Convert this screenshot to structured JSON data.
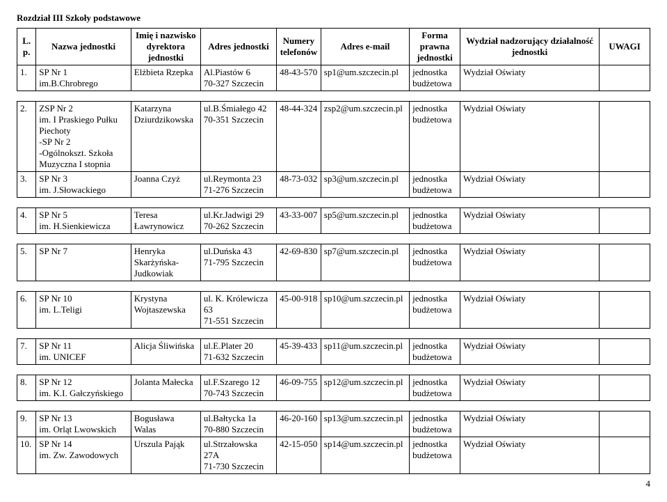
{
  "section_title": "Rozdział III Szkoły podstawowe",
  "headers": {
    "lp": "L.p.",
    "name": "Nazwa jednostki",
    "director": "Imię i nazwisko dyrektora jednostki",
    "address": "Adres jednostki",
    "phones": "Numery telefonów",
    "email": "Adres e-mail",
    "legal": "Forma prawna jednostki",
    "dept": "Wydział nadzorujący działalność jednostki",
    "notes": "UWAGI"
  },
  "rows": [
    {
      "lp": "1.",
      "name": "SP Nr 1\nim.B.Chrobrego",
      "director": "Elżbieta Rzepka",
      "address": "Al.Piastów 6\n70-327 Szczecin",
      "phones": "48-43-570",
      "email": "sp1@um.szczecin.pl",
      "legal": "jednostka budżetowa",
      "dept": "Wydział Oświaty",
      "notes": ""
    },
    {
      "gap": true
    },
    {
      "lp": "2.",
      "name": "ZSP Nr 2\nim. I Praskiego Pułku Piechoty\n-SP Nr 2\n-Ogólnokszt. Szkoła Muzyczna I stopnia",
      "director": "Katarzyna Dziurdzikowska",
      "address": "ul.B.Śmiałego 42\n70-351 Szczecin",
      "phones": "48-44-324",
      "email": "zsp2@um.szczecin.pl",
      "legal": "jednostka budżetowa",
      "dept": "Wydział Oświaty",
      "notes": ""
    },
    {
      "lp": "3.",
      "name": "SP Nr 3\nim. J.Słowackiego",
      "director": "Joanna Czyż",
      "address": "ul.Reymonta 23\n71-276 Szczecin",
      "phones": "48-73-032",
      "email": "sp3@um.szczecin.pl",
      "legal": "jednostka budżetowa",
      "dept": "Wydział Oświaty",
      "notes": ""
    },
    {
      "gap": true
    },
    {
      "lp": "4.",
      "name": "SP Nr 5\nim. H.Sienkiewicza",
      "director": "Teresa Ławrynowicz",
      "address": "ul.Kr.Jadwigi 29\n70-262 Szczecin",
      "phones": "43-33-007",
      "email": "sp5@um.szczecin.pl",
      "legal": "jednostka budżetowa",
      "dept": "Wydział Oświaty",
      "notes": ""
    },
    {
      "gap": true
    },
    {
      "lp": "5.",
      "name": "SP Nr 7",
      "director": "Henryka Skarżyńska-Judkowiak",
      "address": "ul.Duńska 43\n71-795 Szczecin",
      "phones": "42-69-830",
      "email": "sp7@um.szczecin.pl",
      "legal": "jednostka budżetowa",
      "dept": "Wydział Oświaty",
      "notes": ""
    },
    {
      "gap": true
    },
    {
      "lp": "6.",
      "name": "SP Nr 10\nim. L.Teligi",
      "director": "Krystyna Wojtaszewska",
      "address": "ul. K. Królewicza 63\n71-551 Szczecin",
      "phones": "45-00-918",
      "email": "sp10@um.szczecin.pl",
      "legal": "jednostka budżetowa",
      "dept": "Wydział Oświaty",
      "notes": ""
    },
    {
      "gap": true
    },
    {
      "lp": "7.",
      "name": "SP Nr 11\nim. UNICEF",
      "director": "Alicja Śliwińska",
      "address": "ul.E.Plater 20\n71-632 Szczecin",
      "phones": "45-39-433",
      "email": "sp11@um.szczecin.pl",
      "legal": "jednostka budżetowa",
      "dept": "Wydział Oświaty",
      "notes": ""
    },
    {
      "gap": true
    },
    {
      "lp": "8.",
      "name": "SP Nr 12\nim. K.I. Gałczyńskiego",
      "director": "Jolanta Małecka",
      "address": "ul.F.Szarego 12\n70-743 Szczecin",
      "phones": "46-09-755",
      "email": "sp12@um.szczecin.pl",
      "legal": "jednostka budżetowa",
      "dept": "Wydział Oświaty",
      "notes": ""
    },
    {
      "gap": true
    },
    {
      "lp": "9.",
      "name": "SP Nr 13\nim. Orląt Lwowskich",
      "director": "Bogusława Walas",
      "address": "ul.Bałtycka 1a\n70-880 Szczecin",
      "phones": "46-20-160",
      "email": "sp13@um.szczecin.pl",
      "legal": "jednostka budżetowa",
      "dept": "Wydział Oświaty",
      "notes": ""
    },
    {
      "lp": "10.",
      "name": "SP Nr 14\nim. Zw. Zawodowych",
      "director": "Urszula Pająk",
      "address": "ul.Strzałowska 27A\n71-730 Szczecin",
      "phones": "42-15-050",
      "email": "sp14@um.szczecin.pl",
      "legal": "jednostka budżetowa",
      "dept": "Wydział Oświaty",
      "notes": ""
    }
  ],
  "page_number": "4"
}
